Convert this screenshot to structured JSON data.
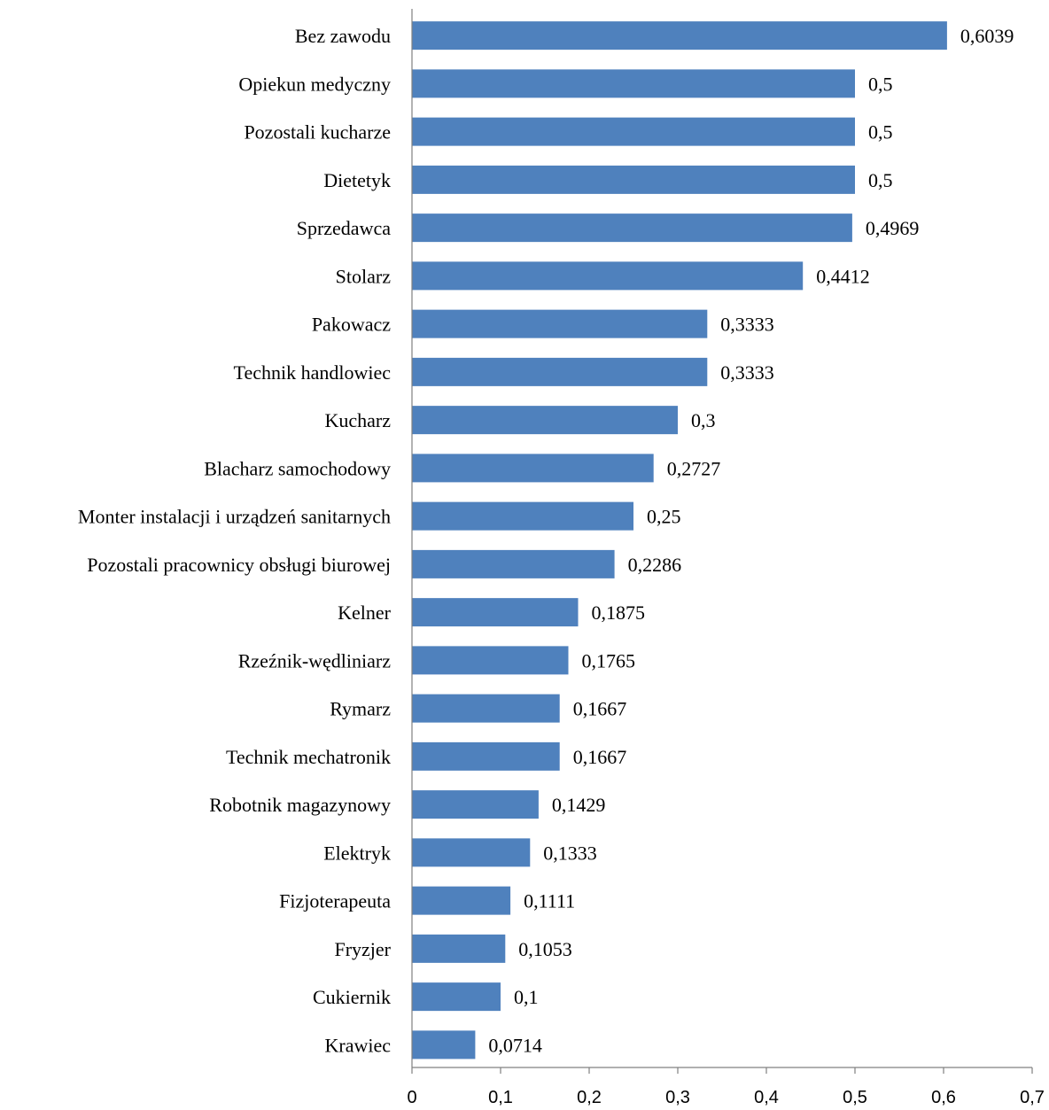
{
  "chart_data": {
    "type": "bar",
    "orientation": "horizontal",
    "title": "",
    "xlabel": "",
    "ylabel": "",
    "xlim": [
      0,
      0.7
    ],
    "grid": false,
    "legend": "none",
    "bar_color": "#4F81BD",
    "x_ticks": [
      "0",
      "0,1",
      "0,2",
      "0,3",
      "0,4",
      "0,5",
      "0,6",
      "0,7"
    ],
    "x_tick_values": [
      0,
      0.1,
      0.2,
      0.3,
      0.4,
      0.5,
      0.6,
      0.7
    ],
    "categories": [
      "Bez zawodu",
      "Opiekun medyczny",
      "Pozostali kucharze",
      "Dietetyk",
      "Sprzedawca",
      "Stolarz",
      "Pakowacz",
      "Technik handlowiec",
      "Kucharz",
      "Blacharz samochodowy",
      "Monter instalacji i urządzeń sanitarnych",
      "Pozostali pracownicy obsługi biurowej",
      "Kelner",
      "Rzeźnik-wędliniarz",
      "Rymarz",
      "Technik mechatronik",
      "Robotnik magazynowy",
      "Elektryk",
      "Fizjoterapeuta",
      "Fryzjer",
      "Cukiernik",
      "Krawiec"
    ],
    "values": [
      0.6039,
      0.5,
      0.5,
      0.5,
      0.4969,
      0.4412,
      0.3333,
      0.3333,
      0.3,
      0.2727,
      0.25,
      0.2286,
      0.1875,
      0.1765,
      0.1667,
      0.1667,
      0.1429,
      0.1333,
      0.1111,
      0.1053,
      0.1,
      0.0714
    ],
    "value_labels": [
      "0,6039",
      "0,5",
      "0,5",
      "0,5",
      "0,4969",
      "0,4412",
      "0,3333",
      "0,3333",
      "0,3",
      "0,2727",
      "0,25",
      "0,2286",
      "0,1875",
      "0,1765",
      "0,1667",
      "0,1667",
      "0,1429",
      "0,1333",
      "0,1111",
      "0,1053",
      "0,1",
      "0,0714"
    ]
  }
}
